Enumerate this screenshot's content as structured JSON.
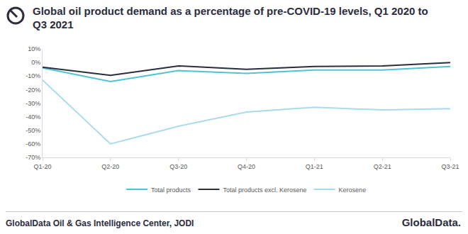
{
  "chart_data": {
    "type": "line",
    "title": "Global oil product demand as a percentage of pre-COVID-19 levels, Q1 2020 to Q3 2021",
    "categories": [
      "Q1-20",
      "Q2-20",
      "Q3-20",
      "Q4-20",
      "Q1-21",
      "Q2-21",
      "Q3-21"
    ],
    "series": [
      {
        "name": "Total products",
        "color": "#4fc3d4",
        "line_style": "solid",
        "values": [
          -4,
          -14,
          -6,
          -8,
          -5.5,
          -5.5,
          -3
        ]
      },
      {
        "name": "Total products excl. Kerosene",
        "color": "#2b2d3c",
        "line_style": "solid",
        "values": [
          -3.5,
          -9.5,
          -2.5,
          -5,
          -3,
          -2.5,
          0
        ]
      },
      {
        "name": "Kerosene",
        "color": "#a9dcea",
        "line_style": "solid",
        "values": [
          -13,
          -60,
          -47,
          -36.5,
          -33,
          -35,
          -34
        ]
      }
    ],
    "ylim": [
      -70,
      10
    ],
    "yticks": [
      {
        "value": 10,
        "label": "10%"
      },
      {
        "value": 0,
        "label": "0%"
      },
      {
        "value": -10,
        "label": "-10%"
      },
      {
        "value": -20,
        "label": "-20%"
      },
      {
        "value": -30,
        "label": "-30%"
      },
      {
        "value": -40,
        "label": "-40%"
      },
      {
        "value": -50,
        "label": "-50%"
      },
      {
        "value": -60,
        "label": "-60%"
      },
      {
        "value": -70,
        "label": "-70%"
      }
    ],
    "grid": false,
    "legend": "bottom",
    "annotations": [
      "GlobalData Oil & Gas Intelligence Center, JODI",
      "GlobalData."
    ]
  }
}
